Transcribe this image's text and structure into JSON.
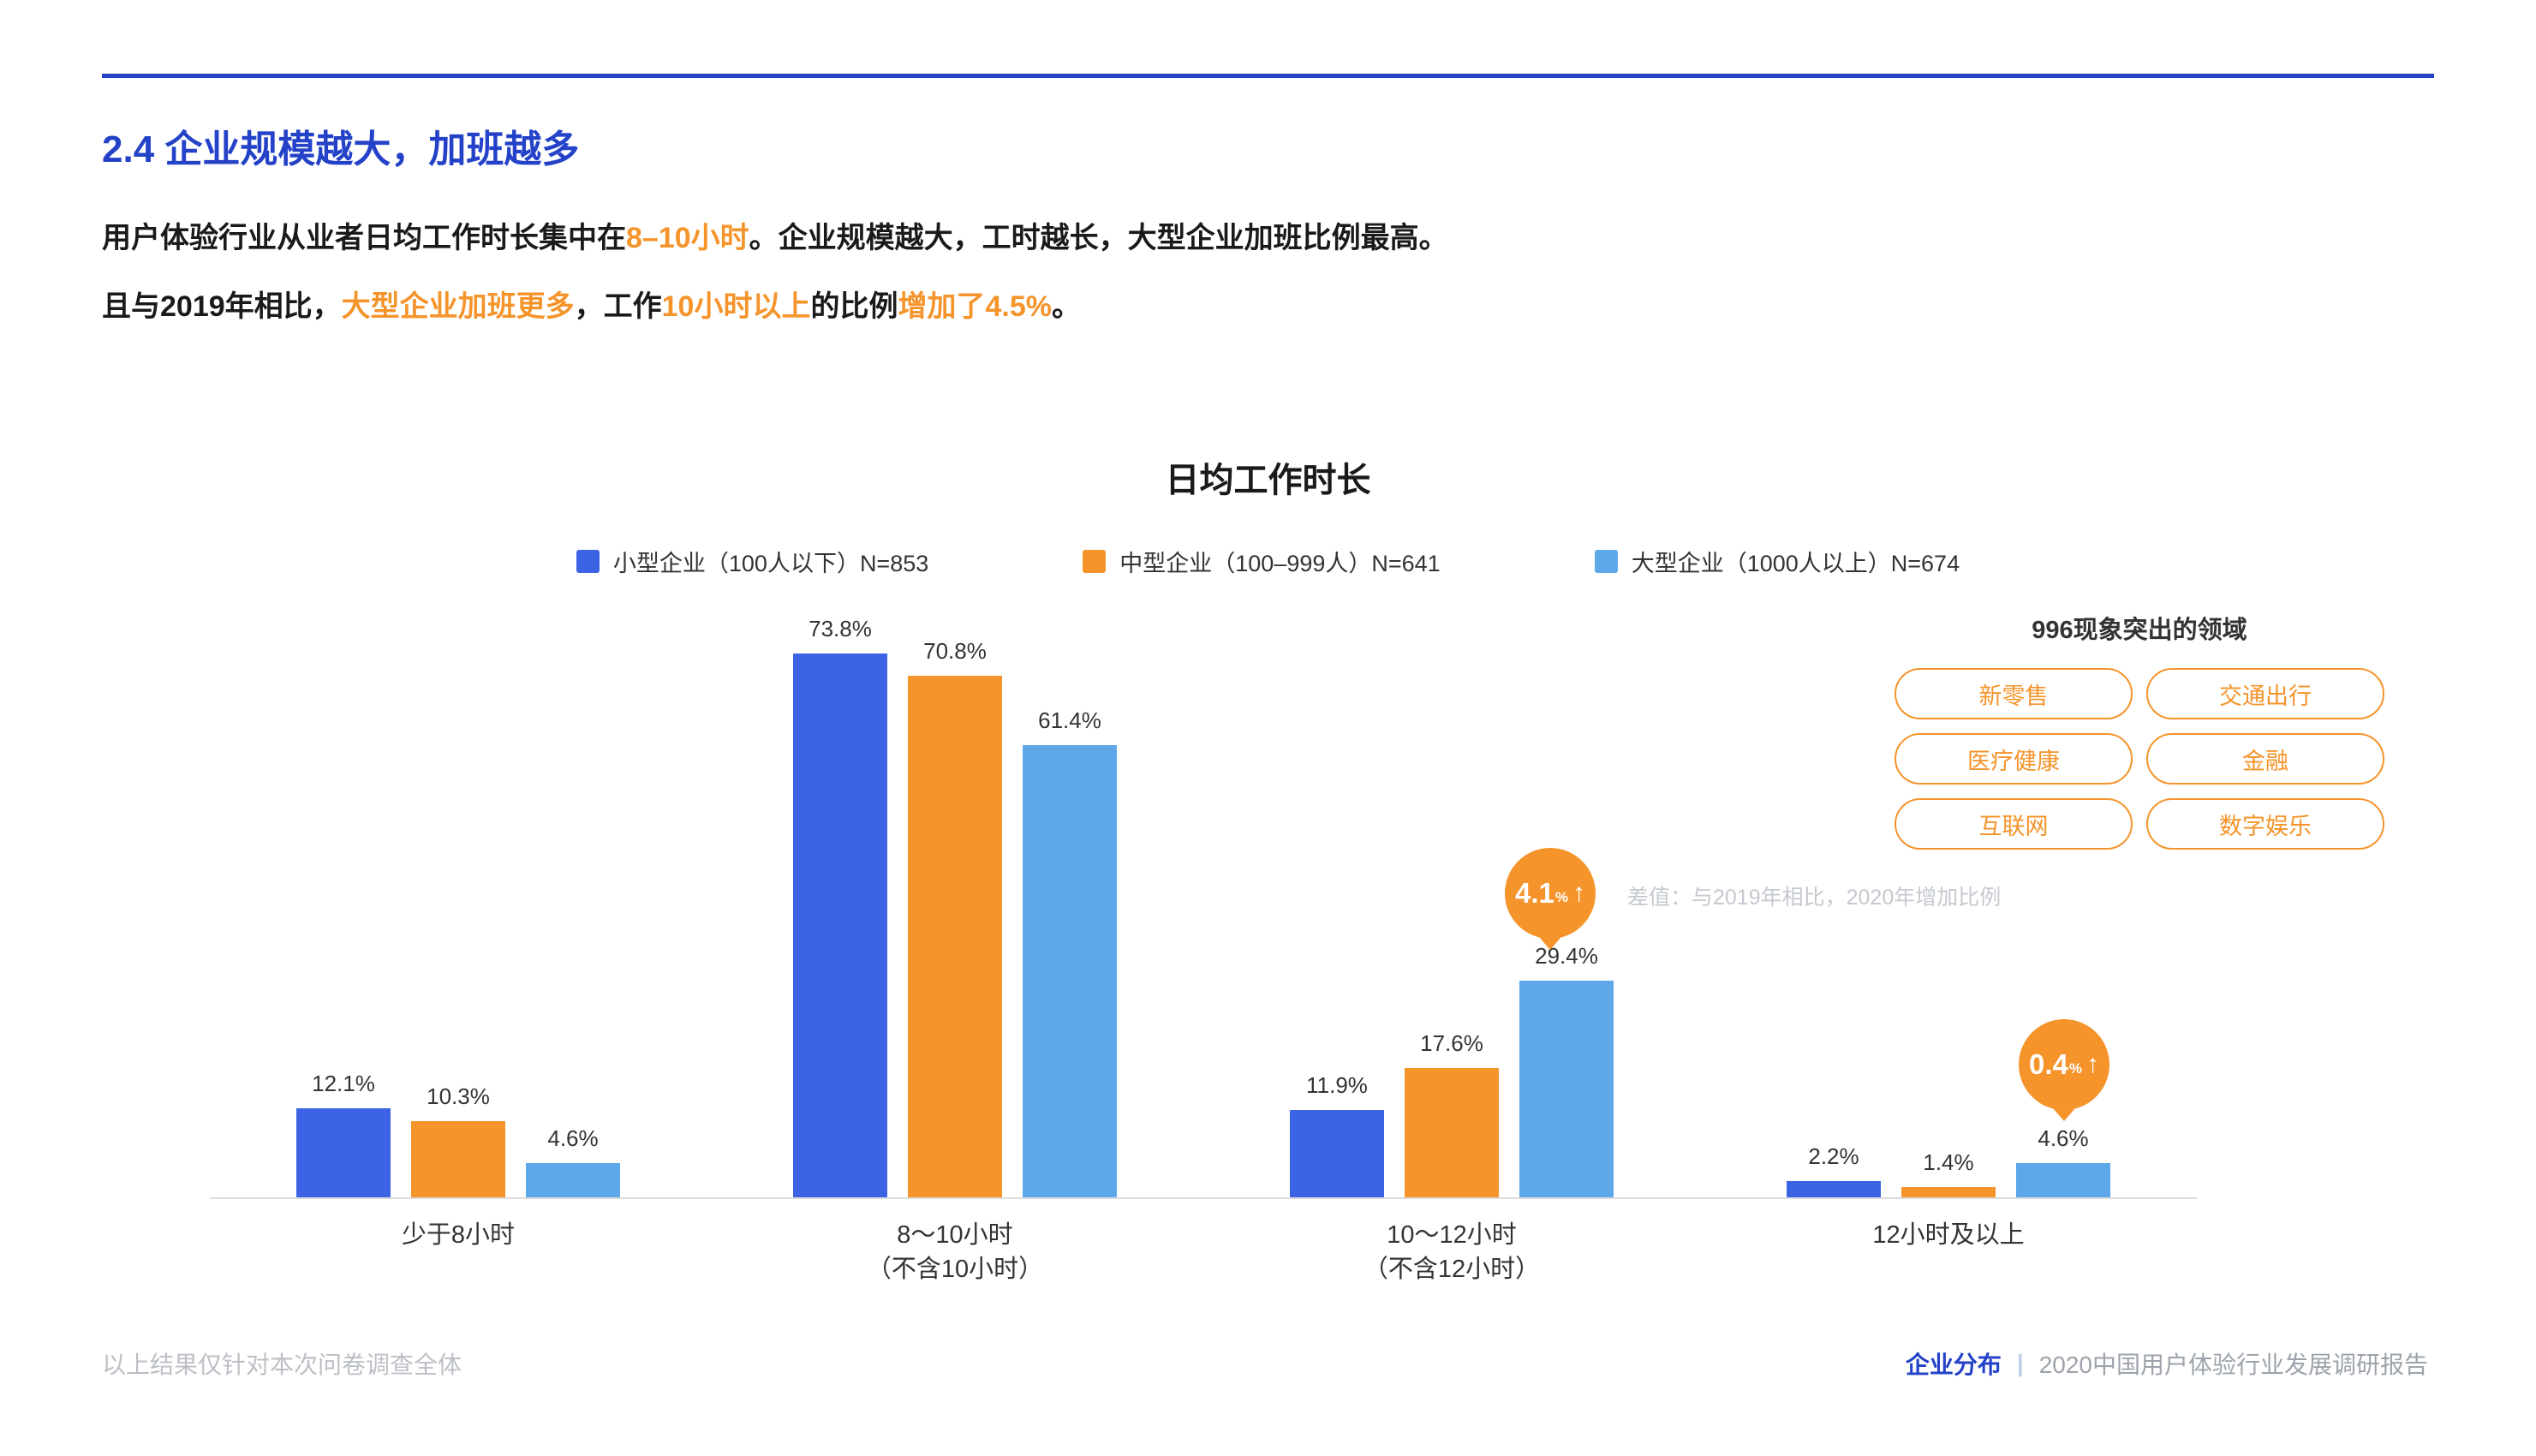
{
  "colors": {
    "primary_blue": "#2442C8",
    "accent_orange": "#F5942B",
    "series_small": "#3D63E5",
    "series_medium": "#F5942B",
    "series_large": "#5EA8EA"
  },
  "header": {
    "section_title": "2.4 企业规模越大，加班越多",
    "paragraph1": [
      {
        "text": "用户体验行业从业者日均工作时长集中在",
        "highlight": false
      },
      {
        "text": "8–10小时",
        "highlight": true
      },
      {
        "text": "。企业规模越大，工时越长，大型企业加班比例最高。",
        "highlight": false
      }
    ],
    "paragraph2": [
      {
        "text": "且与2019年相比，",
        "highlight": false
      },
      {
        "text": "大型企业加班更多",
        "highlight": true
      },
      {
        "text": "，工作",
        "highlight": false
      },
      {
        "text": "10小时以上",
        "highlight": true
      },
      {
        "text": "的比例",
        "highlight": false
      },
      {
        "text": "增加了4.5%",
        "highlight": true
      },
      {
        "text": "。",
        "highlight": false
      }
    ]
  },
  "chart_data": {
    "type": "bar",
    "title": "日均工作时长",
    "value_suffix": "%",
    "ylim": [
      0,
      80
    ],
    "grid": false,
    "legend_position": "top",
    "categories": [
      {
        "label": "少于8小时",
        "note": ""
      },
      {
        "label": "8～10小时",
        "note": "（不含10小时）"
      },
      {
        "label": "10～12小时",
        "note": "（不含12小时）"
      },
      {
        "label": "12小时及以上",
        "note": ""
      }
    ],
    "series": [
      {
        "name": "小型企业（100人以下）N=853",
        "color": "#3D63E5",
        "values": [
          12.1,
          73.8,
          11.9,
          2.2
        ]
      },
      {
        "name": "中型企业（100–999人）N=641",
        "color": "#F5942B",
        "values": [
          10.3,
          70.8,
          17.6,
          1.4
        ]
      },
      {
        "name": "大型企业（1000人以上）N=674",
        "color": "#5EA8EA",
        "values": [
          4.6,
          61.4,
          29.4,
          4.6
        ]
      }
    ]
  },
  "callouts": [
    {
      "value": "4.1",
      "unit": "%",
      "category": "10～12小时（不含12小时）",
      "series": "大型企业（1000人以上）"
    },
    {
      "value": "0.4",
      "unit": "%",
      "category": "12小时及以上",
      "series": "大型企业（1000人以上）"
    }
  ],
  "callout_note": "差值：与2019年相比，2020年增加比例",
  "icons": {
    "up_arrow": "↑"
  },
  "tags_panel": {
    "title": "996现象突出的领域",
    "tags": [
      "新零售",
      "交通出行",
      "医疗健康",
      "金融",
      "互联网",
      "数字娱乐"
    ]
  },
  "footer": {
    "left": "以上结果仅针对本次问卷调查全体",
    "right_primary": "企业分布",
    "separator": "|",
    "right_secondary": "2020中国用户体验行业发展调研报告"
  }
}
